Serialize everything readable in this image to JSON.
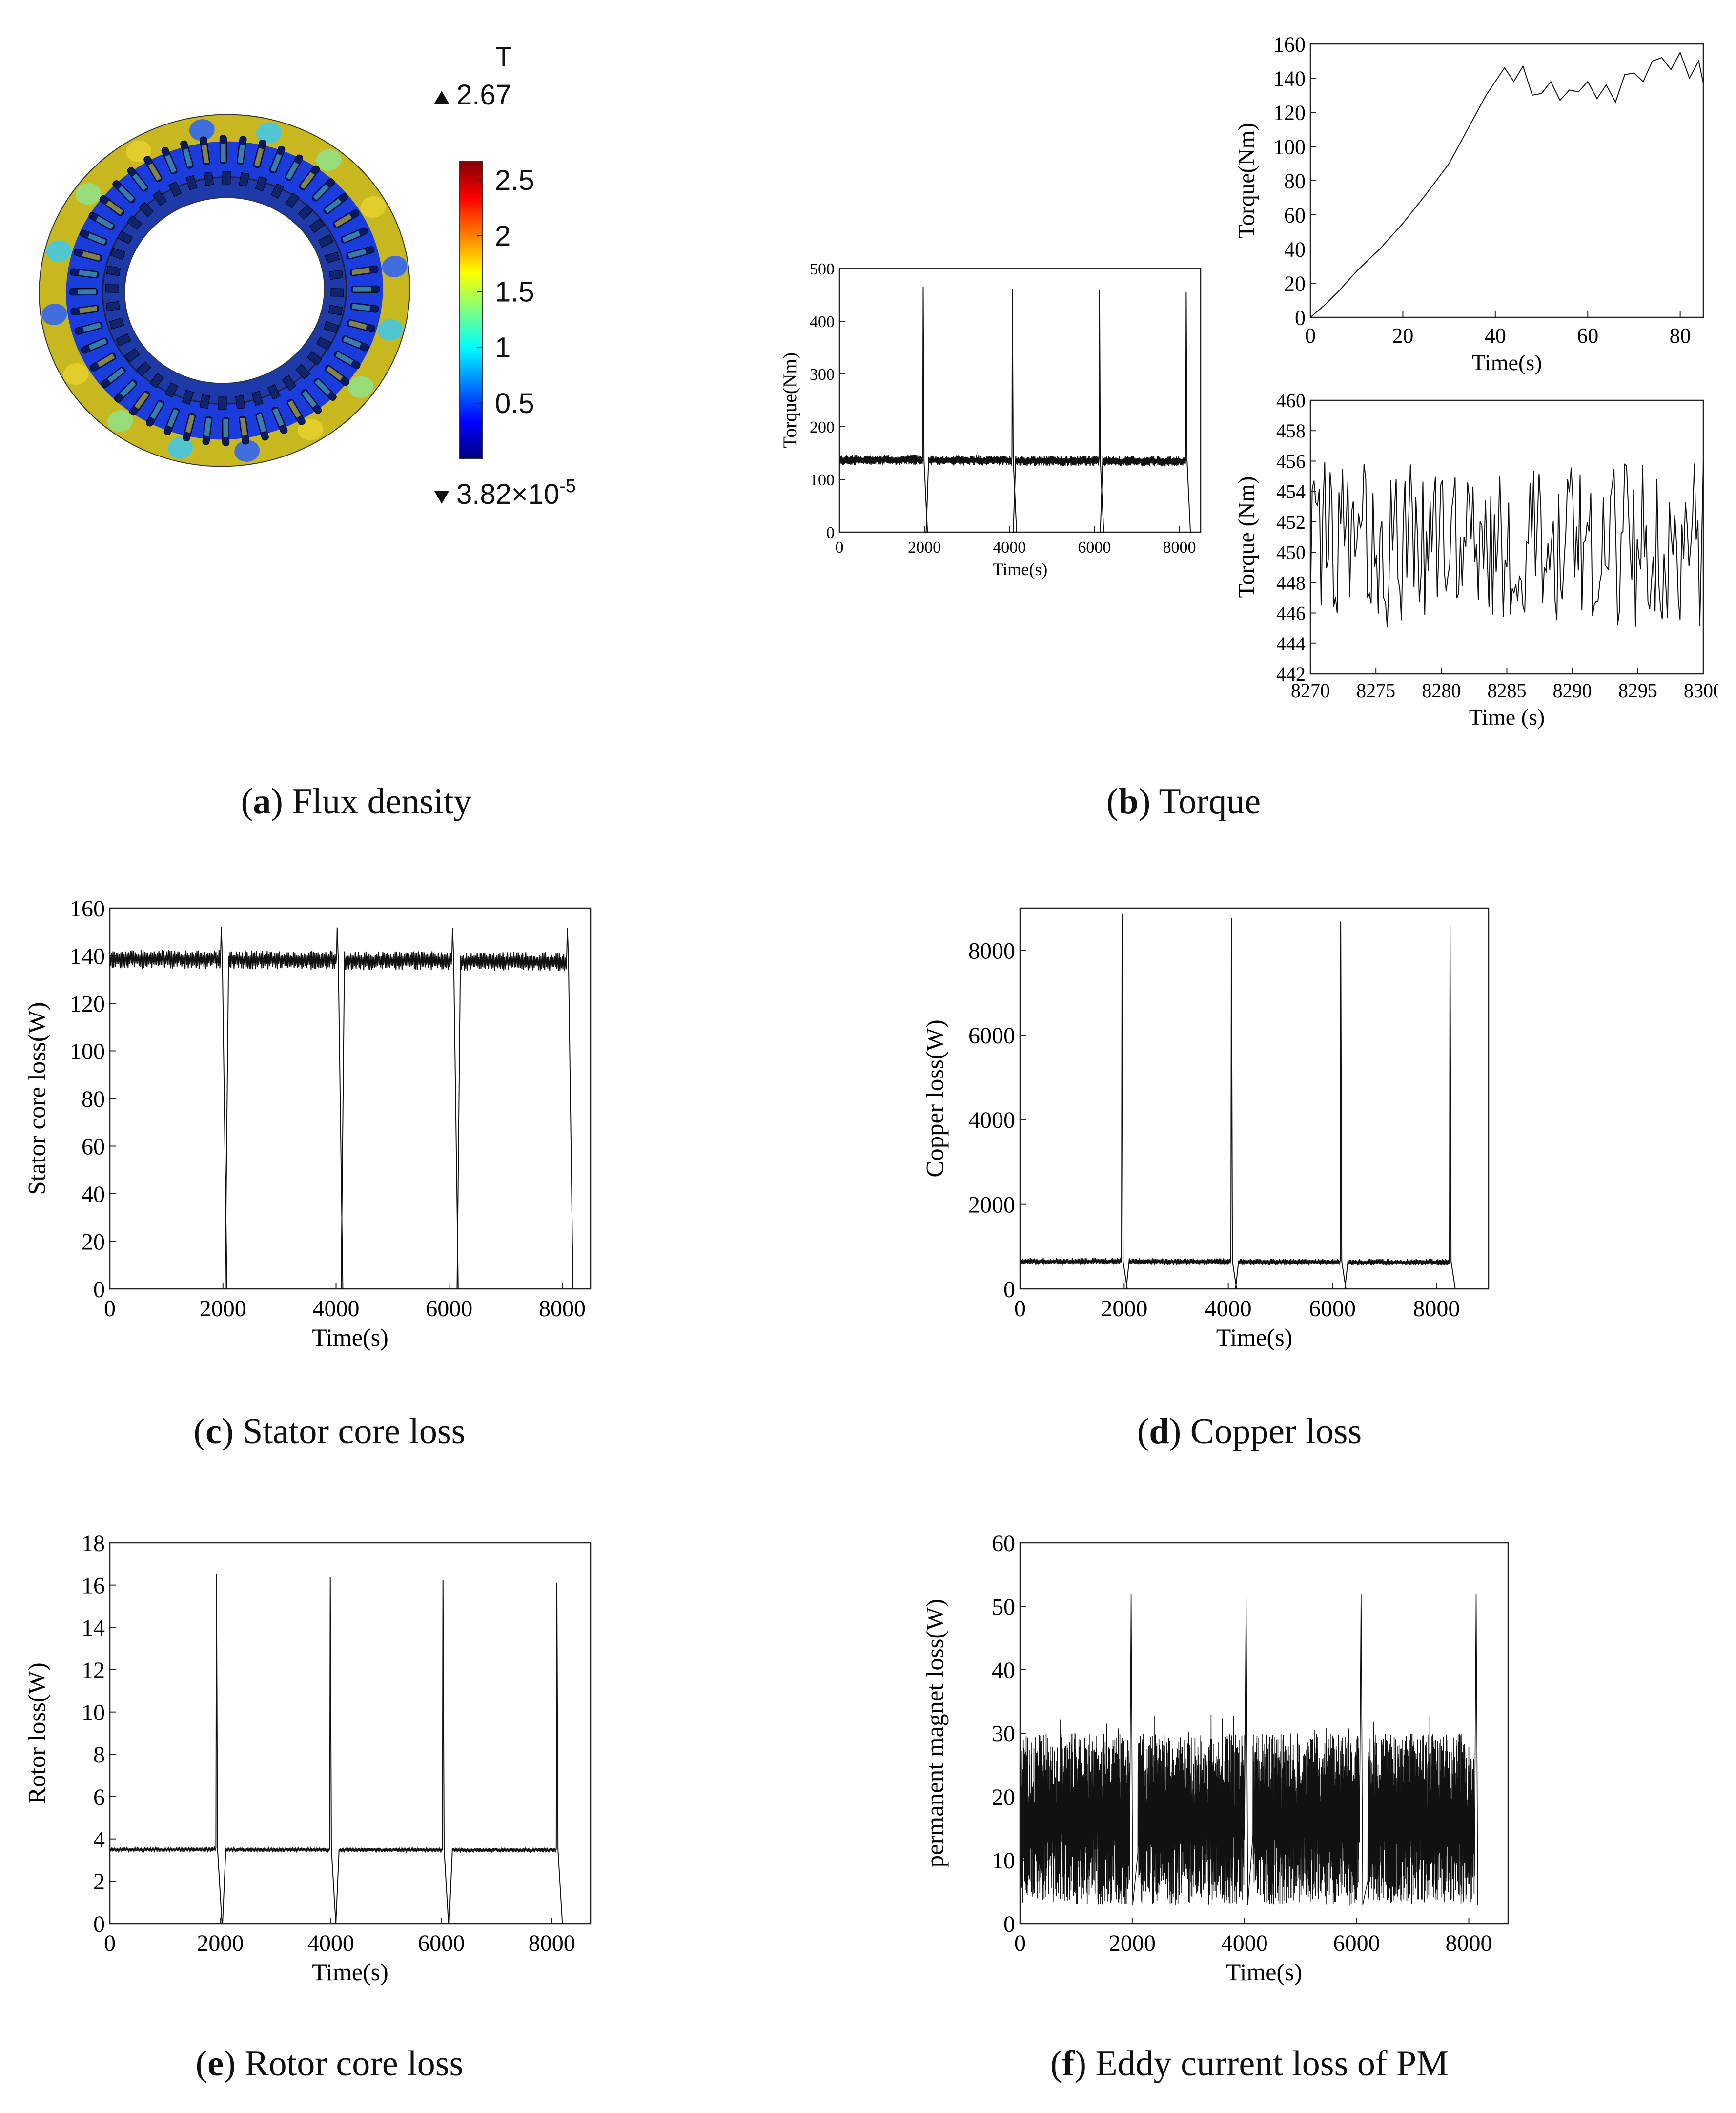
{
  "captions": [
    {
      "letter": "a",
      "text": "Flux density"
    },
    {
      "letter": "b",
      "text": "Torque"
    },
    {
      "letter": "c",
      "text": "Stator core loss"
    },
    {
      "letter": "d",
      "text": "Copper loss"
    },
    {
      "letter": "e",
      "text": "Rotor core loss"
    },
    {
      "letter": "f",
      "text": "Eddy current loss of PM"
    }
  ],
  "flux": {
    "unit": "T",
    "max_label": "2.67",
    "min_label_base": "3.82×10",
    "min_label_exp": "-5",
    "colorbar_ticks": [
      "0.5",
      "1",
      "1.5",
      "2",
      "2.5"
    ],
    "colorbar_values": [
      0.5,
      1,
      1.5,
      2,
      2.5
    ],
    "colorbar_range": [
      0,
      2.67
    ],
    "colormap": [
      "#00007f",
      "#0000ff",
      "#007fff",
      "#00ffff",
      "#7fff7f",
      "#ffff00",
      "#ff7f00",
      "#ff0000",
      "#7f0000"
    ]
  },
  "chart_data": [
    {
      "id": "torque-main",
      "type": "line",
      "xlabel": "Time(s)",
      "ylabel": "Torque(Nm)",
      "xlim": [
        0,
        8500
      ],
      "ylim": [
        0,
        500
      ],
      "xticks": [
        0,
        2000,
        4000,
        6000,
        8000
      ],
      "yticks": [
        0,
        100,
        200,
        300,
        400,
        500
      ],
      "pattern": {
        "kind": "cycles",
        "starts": [
          0,
          2100,
          4150,
          6200
        ],
        "ends": [
          1960,
          4060,
          6110,
          8150
        ],
        "base": 137,
        "ripple": 10,
        "peak": 465,
        "dip": 0
      }
    },
    {
      "id": "torque-startup",
      "type": "line",
      "xlabel": "Time(s)",
      "ylabel": "Torque(Nm)",
      "xlim": [
        0,
        85
      ],
      "ylim": [
        0,
        160
      ],
      "xticks": [
        0,
        20,
        40,
        60,
        80
      ],
      "yticks": [
        0,
        20,
        40,
        60,
        80,
        100,
        120,
        140,
        160
      ],
      "x": [
        0,
        3,
        6,
        10,
        15,
        20,
        25,
        30,
        35,
        38,
        40,
        42,
        44,
        46,
        48,
        50,
        52,
        54,
        56,
        58,
        60,
        62,
        64,
        66,
        68,
        70,
        72,
        74,
        76,
        78,
        80,
        82,
        84,
        85
      ],
      "y": [
        0,
        7,
        15,
        27,
        40,
        55,
        72,
        90,
        115,
        130,
        138,
        146,
        138,
        147,
        130,
        131,
        138,
        127,
        133,
        132,
        138,
        128,
        136,
        126,
        142,
        143,
        138,
        150,
        152,
        145,
        155,
        140,
        150,
        137
      ]
    },
    {
      "id": "torque-zoom",
      "type": "line",
      "xlabel": "Time (s)",
      "ylabel": "Torque (Nm)",
      "xlim": [
        8270,
        8300
      ],
      "ylim": [
        442,
        460
      ],
      "xticks": [
        8270,
        8275,
        8280,
        8285,
        8290,
        8295,
        8300
      ],
      "yticks": [
        442,
        444,
        446,
        448,
        450,
        452,
        454,
        456,
        458,
        460
      ],
      "pattern": {
        "kind": "noise",
        "center": 450.5,
        "amp": 5.5,
        "count": 220
      }
    },
    {
      "id": "stator-loss",
      "type": "line",
      "xlabel": "Time(s)",
      "ylabel": "Stator core loss(W)",
      "xlim": [
        0,
        8500
      ],
      "ylim": [
        0,
        160
      ],
      "xticks": [
        0,
        2000,
        4000,
        6000,
        8000
      ],
      "yticks": [
        0,
        20,
        40,
        60,
        80,
        100,
        120,
        140,
        160
      ],
      "pattern": {
        "kind": "cycles",
        "starts": [
          0,
          2100,
          4150,
          6200
        ],
        "ends": [
          1960,
          4010,
          6050,
          8080
        ],
        "base": 138.5,
        "ripple": 4,
        "peak": 152,
        "dip": 0
      }
    },
    {
      "id": "copper-loss",
      "type": "line",
      "xlabel": "Time(s)",
      "ylabel": "Copper loss(W)",
      "xlim": [
        0,
        9000
      ],
      "ylim": [
        0,
        9000
      ],
      "xticks": [
        0,
        2000,
        4000,
        6000,
        8000
      ],
      "yticks": [
        0,
        2000,
        4000,
        6000,
        8000
      ],
      "pattern": {
        "kind": "cycles",
        "starts": [
          0,
          2100,
          4200,
          6300
        ],
        "ends": [
          1950,
          4050,
          6150,
          8250
        ],
        "base": 650,
        "ripple": 80,
        "peak": 8850,
        "dip": 0
      }
    },
    {
      "id": "rotor-loss",
      "type": "line",
      "xlabel": "Time(s)",
      "ylabel": "Rotor loss(W)",
      "xlim": [
        0,
        8700
      ],
      "ylim": [
        0,
        18
      ],
      "xticks": [
        0,
        2000,
        4000,
        6000,
        8000
      ],
      "yticks": [
        0,
        2,
        4,
        6,
        8,
        10,
        12,
        14,
        16,
        18
      ],
      "pattern": {
        "kind": "cycles",
        "starts": [
          0,
          2100,
          4150,
          6200
        ],
        "ends": [
          1920,
          3980,
          6020,
          8080
        ],
        "base": 3.5,
        "ripple": 0.1,
        "peak": 16.5,
        "dip": 0
      }
    },
    {
      "id": "pm-loss",
      "type": "line",
      "xlabel": "Time(s)",
      "ylabel": "permanent magnet loss(W)",
      "xlim": [
        0,
        8700
      ],
      "ylim": [
        0,
        60
      ],
      "xticks": [
        0,
        2000,
        4000,
        6000,
        8000
      ],
      "yticks": [
        0,
        10,
        20,
        30,
        40,
        50,
        60
      ],
      "pattern": {
        "kind": "noisy-cycles",
        "starts": [
          0,
          2100,
          4150,
          6200
        ],
        "ends": [
          1950,
          4000,
          6050,
          8100
        ],
        "low": 3,
        "high": 30,
        "peak": 52
      }
    }
  ]
}
